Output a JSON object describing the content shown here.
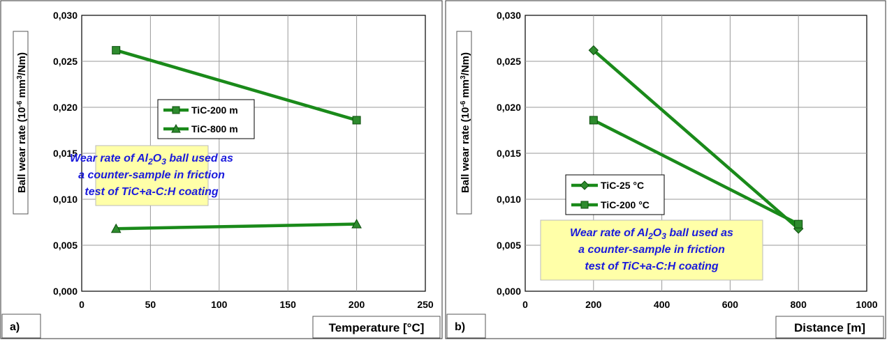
{
  "chart_data": [
    {
      "type": "line",
      "panel_label": "a)",
      "xlabel": "Temperature [°C]",
      "ylabel": "Ball wear rate (10-6 mm3/Nm)",
      "ylabel_parts": [
        "Ball wear rate (10",
        "-6",
        " mm",
        "3",
        "/Nm)"
      ],
      "xlim": [
        0,
        250
      ],
      "ylim": [
        0,
        0.03
      ],
      "x_ticks": [
        0,
        50,
        100,
        150,
        200,
        250
      ],
      "x_tick_labels": [
        "0",
        "50",
        "100",
        "150",
        "200",
        "250"
      ],
      "y_ticks": [
        0,
        0.005,
        0.01,
        0.015,
        0.02,
        0.025,
        0.03
      ],
      "y_tick_labels": [
        "0,000",
        "0,005",
        "0,010",
        "0,015",
        "0,020",
        "0,025",
        "0,030"
      ],
      "grid": true,
      "legend_position": "upper-center",
      "series": [
        {
          "name": "TiC-200 m",
          "marker": "square",
          "color": "#1a8a1a",
          "marker_fill": "#2e8b2e",
          "x": [
            25,
            200
          ],
          "y": [
            0.0262,
            0.0186
          ]
        },
        {
          "name": "TiC-800 m",
          "marker": "triangle",
          "color": "#1a8a1a",
          "marker_fill": "#2e8b2e",
          "x": [
            25,
            200
          ],
          "y": [
            0.0068,
            0.0073
          ]
        }
      ],
      "annotation": {
        "lines": [
          "Wear rate of Al2O3 ball used as",
          "a counter-sample in friction",
          "test of TiC+a-C:H coating"
        ],
        "line1_parts": [
          "Wear rate of Al",
          "2",
          "O",
          "3",
          " ball used as"
        ],
        "line2": "a counter-sample in friction",
        "line3": "test of TiC+a-C:H coating",
        "text_color": "#1a1adc",
        "background": "#ffffa8"
      }
    },
    {
      "type": "line",
      "panel_label": "b)",
      "xlabel": "Distance [m]",
      "ylabel": "Ball wear rate (10-6 mm3/Nm)",
      "ylabel_parts": [
        "Ball wear rate (10",
        "-6",
        " mm",
        "3",
        "/Nm)"
      ],
      "xlim": [
        0,
        1000
      ],
      "ylim": [
        0,
        0.03
      ],
      "x_ticks": [
        0,
        200,
        400,
        600,
        800,
        1000
      ],
      "x_tick_labels": [
        "0",
        "200",
        "400",
        "600",
        "800",
        "1000"
      ],
      "y_ticks": [
        0,
        0.005,
        0.01,
        0.015,
        0.02,
        0.025,
        0.03
      ],
      "y_tick_labels": [
        "0,000",
        "0,005",
        "0,010",
        "0,015",
        "0,020",
        "0,025",
        "0,030"
      ],
      "grid": true,
      "legend_position": "center-left",
      "series": [
        {
          "name": "TiC-25 °C",
          "marker": "diamond",
          "color": "#1a8a1a",
          "marker_fill": "#2e8b2e",
          "x": [
            200,
            800
          ],
          "y": [
            0.0262,
            0.0068
          ]
        },
        {
          "name": "TiC-200 °C",
          "marker": "square",
          "color": "#1a8a1a",
          "marker_fill": "#2e8b2e",
          "x": [
            200,
            800
          ],
          "y": [
            0.0186,
            0.0073
          ]
        }
      ],
      "annotation": {
        "lines": [
          "Wear rate of Al2O3 ball used as",
          "a counter-sample in friction",
          "test of TiC+a-C:H coating"
        ],
        "line1_parts": [
          "Wear rate of Al",
          "2",
          "O",
          "3",
          " ball used as"
        ],
        "line2": "a counter-sample in friction",
        "line3": "test of TiC+a-C:H coating",
        "text_color": "#1a1adc",
        "background": "#ffffa8"
      }
    }
  ]
}
